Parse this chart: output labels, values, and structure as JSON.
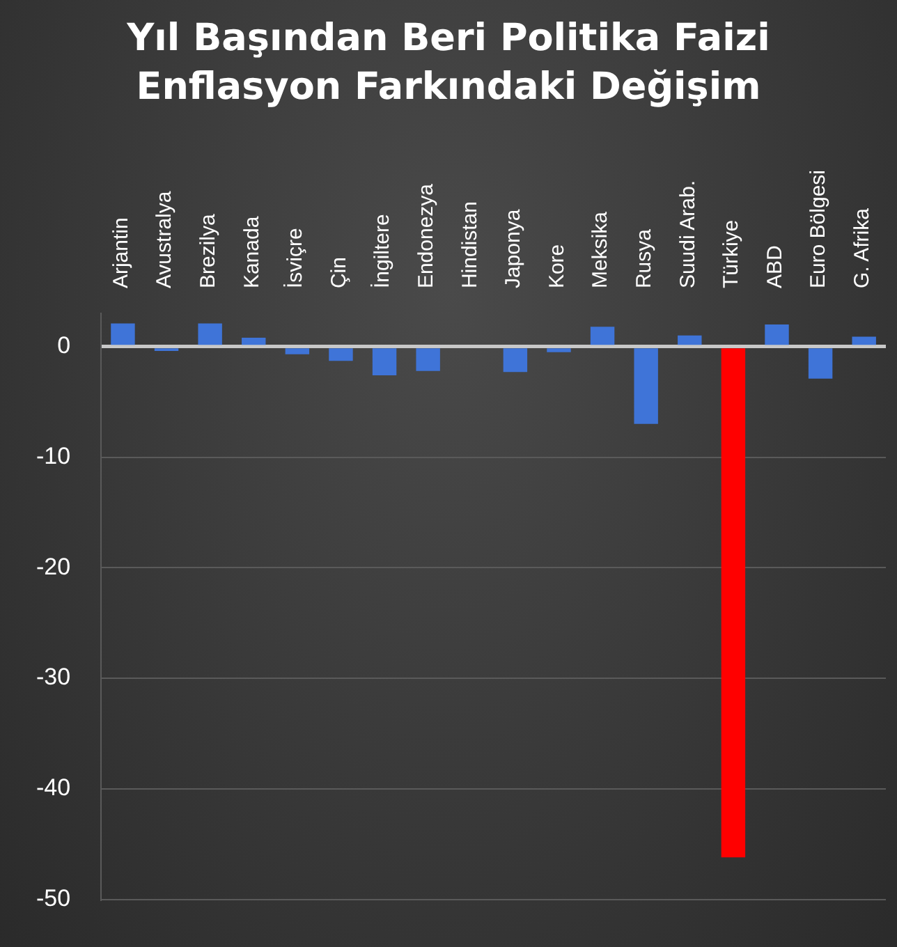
{
  "chart_data": {
    "type": "bar",
    "title": "Yıl Başından Beri Politika Faizi Enflasyon Farkındaki Değişim",
    "categories": [
      "Arjantin",
      "Avustralya",
      "Brezilya",
      "Kanada",
      "İsviçre",
      "Çin",
      "İngiltere",
      "Endonezya",
      "Hindistan",
      "Japonya",
      "Kore",
      "Meksika",
      "Rusya",
      "Suudi Arab.",
      "Türkiye",
      "ABD",
      "Euro Bölgesi",
      "G. Afrika"
    ],
    "values": [
      2.1,
      -0.4,
      2.1,
      0.8,
      -0.7,
      -1.3,
      -2.6,
      -2.2,
      0,
      -2.3,
      -0.5,
      1.8,
      -7.0,
      1.0,
      -46.2,
      2.0,
      -2.9,
      0.9
    ],
    "colors": [
      "#3f74d8",
      "#3f74d8",
      "#3f74d8",
      "#3f74d8",
      "#3f74d8",
      "#3f74d8",
      "#3f74d8",
      "#3f74d8",
      "#3f74d8",
      "#3f74d8",
      "#3f74d8",
      "#3f74d8",
      "#3f74d8",
      "#3f74d8",
      "#ff0000",
      "#3f74d8",
      "#3f74d8",
      "#3f74d8"
    ],
    "ylim": [
      -50,
      3
    ],
    "yticks": [
      0,
      -10,
      -20,
      -30,
      -40,
      -50
    ],
    "grid": "y",
    "legend": false
  }
}
